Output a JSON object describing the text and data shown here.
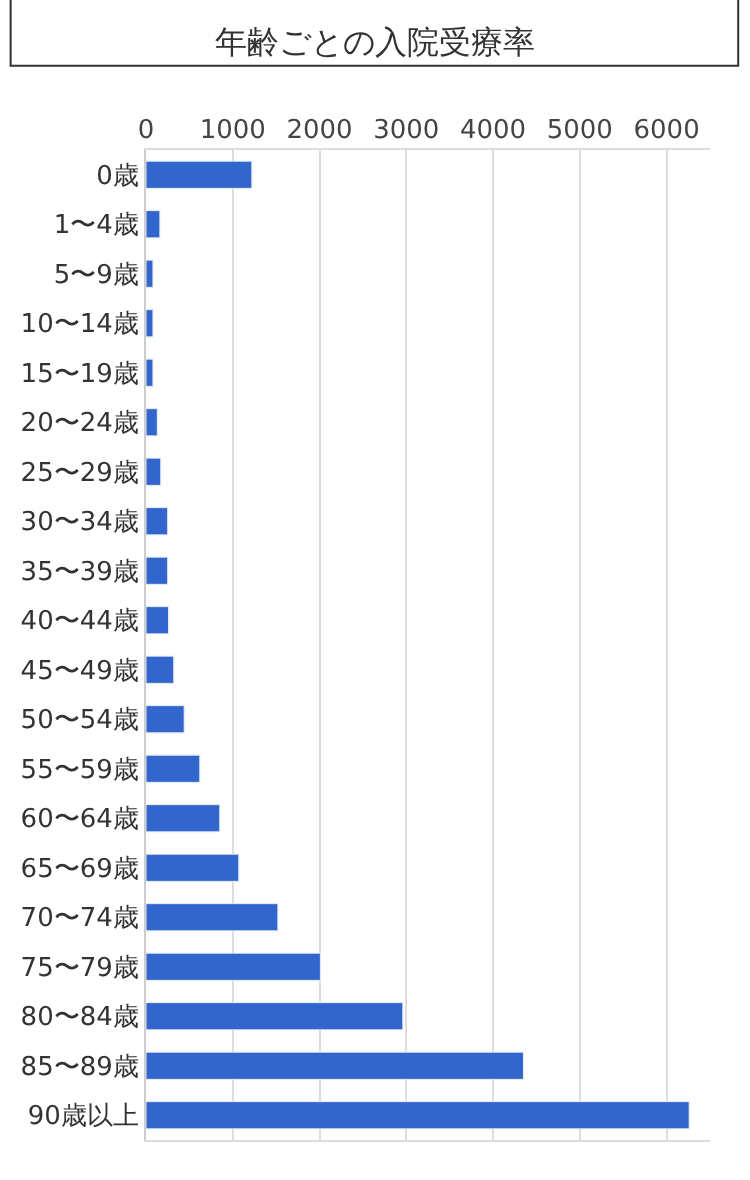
{
  "chart_data": {
    "type": "bar",
    "orientation": "horizontal",
    "title": "年齢ごとの入院受療率",
    "categories": [
      "0歳",
      "1〜4歳",
      "5〜9歳",
      "10〜14歳",
      "15〜19歳",
      "20〜24歳",
      "25〜29歳",
      "30〜34歳",
      "35〜39歳",
      "40〜44歳",
      "45〜49歳",
      "50〜54歳",
      "55〜59歳",
      "60〜64歳",
      "65〜69歳",
      "70〜74歳",
      "75〜79歳",
      "80〜84歳",
      "85〜89歳",
      "90歳以上"
    ],
    "values": [
      1220,
      160,
      80,
      80,
      80,
      130,
      170,
      250,
      250,
      260,
      320,
      440,
      620,
      850,
      1070,
      1520,
      2010,
      2960,
      4350,
      6260
    ],
    "color": "#3366cc",
    "xlim": [
      0,
      6500
    ],
    "xticks": [
      0,
      1000,
      2000,
      3000,
      4000,
      5000,
      6000
    ],
    "grid": "x"
  }
}
